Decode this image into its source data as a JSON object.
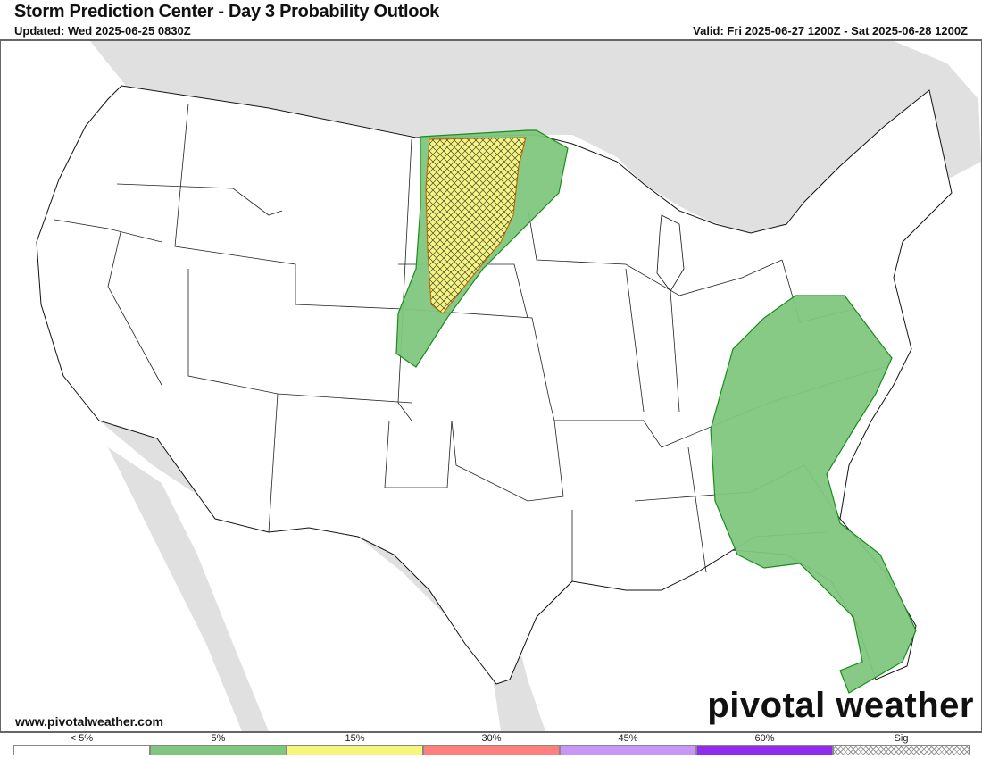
{
  "header": {
    "title": "Storm Prediction Center - Day 3 Probability Outlook",
    "updated": "Updated: Wed 2025-06-25 0830Z",
    "valid": "Valid: Fri 2025-06-27 1200Z - Sat 2025-06-28 1200Z"
  },
  "footer": {
    "website": "www.pivotalweather.com",
    "logo": "pivotal weather"
  },
  "map": {
    "outlook_areas": [
      {
        "category": "5%",
        "region": "northern plains",
        "color": "#7fc77f"
      },
      {
        "category": "15%",
        "region": "northern plains",
        "color": "#f6f67c",
        "significant": true
      },
      {
        "category": "5%",
        "region": "southeast",
        "color": "#7fc77f"
      }
    ]
  },
  "legend": {
    "items": [
      {
        "label": "< 5%",
        "color": "#ffffff"
      },
      {
        "label": "5%",
        "color": "#7fc67e"
      },
      {
        "label": "15%",
        "color": "#f6f67c"
      },
      {
        "label": "30%",
        "color": "#fe7f7e"
      },
      {
        "label": "45%",
        "color": "#c896f7"
      },
      {
        "label": "60%",
        "color": "#912cee"
      },
      {
        "label": "Sig",
        "color": "hatched"
      }
    ]
  }
}
